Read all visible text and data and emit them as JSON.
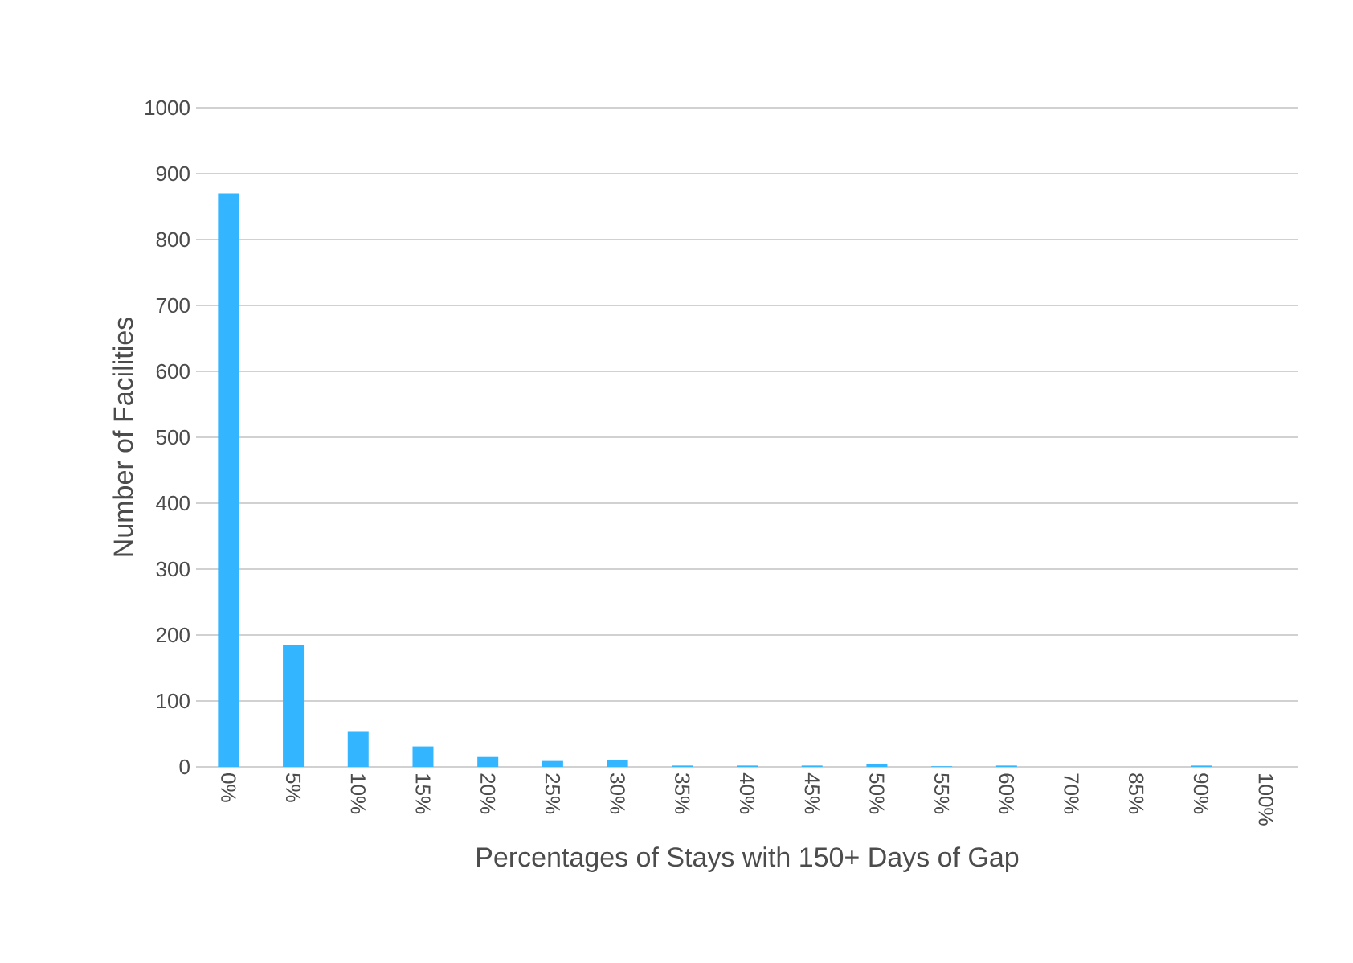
{
  "chart_data": {
    "type": "bar",
    "xlabel": "Percentages of Stays with 150+ Days of Gap",
    "ylabel": "Number of Facilities",
    "categories": [
      "0%",
      "5%",
      "10%",
      "15%",
      "20%",
      "25%",
      "30%",
      "35%",
      "40%",
      "45%",
      "50%",
      "55%",
      "60%",
      "70%",
      "85%",
      "90%",
      "100%"
    ],
    "values": [
      870,
      185,
      53,
      31,
      15,
      9,
      10,
      2,
      2,
      2,
      4,
      1,
      2,
      0,
      0,
      2,
      0
    ],
    "color": "#33b5ff",
    "ylim": [
      0,
      1000
    ],
    "yticks": [
      0,
      100,
      200,
      300,
      400,
      500,
      600,
      700,
      800,
      900,
      1000
    ],
    "grid": "y"
  }
}
